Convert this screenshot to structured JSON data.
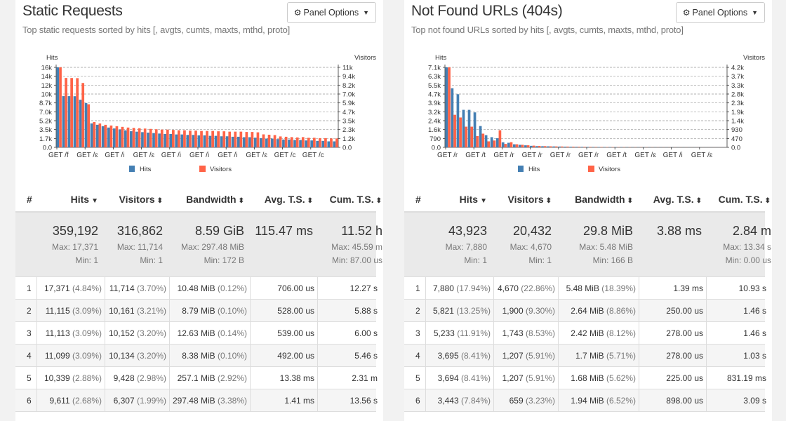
{
  "colors": {
    "hits": "#447fb3",
    "visitors": "#ff6347"
  },
  "panels": [
    {
      "title": "Static Requests",
      "subtitle": "Top static requests sorted by hits [, avgts, cumts, maxts, mthd, proto]",
      "options_label": "Panel Options",
      "chart_data": {
        "type": "bar",
        "y_left_label": "Hits",
        "y_right_label": "Visitors",
        "y_left_ticks": [
          "16k",
          "14k",
          "12k",
          "10k",
          "8.7k",
          "7.0k",
          "5.2k",
          "3.5k",
          "1.7k",
          "0.0"
        ],
        "y_right_ticks": [
          "11k",
          "9.4k",
          "8.2k",
          "7.0k",
          "5.9k",
          "4.7k",
          "3.5k",
          "2.3k",
          "1.2k",
          "0.0"
        ],
        "y_left_max": 17371,
        "y_right_max": 11714,
        "x_tick_labels": [
          "GET /f",
          "GET /ɛ",
          "GET /i",
          "GET /ɛ",
          "GET /i",
          "GET /i",
          "GET /i",
          "GET /ɛ",
          "GET /c",
          "GET /c"
        ],
        "legend": [
          "Hits",
          "Visitors"
        ],
        "series": [
          {
            "name": "Hits",
            "values": [
              17371,
              11115,
              11113,
              11099,
              10339,
              9611,
              5200,
              4900,
              4600,
              4300,
              4100,
              3900,
              3700,
              3500,
              3400,
              3300,
              3200,
              3100,
              3000,
              2900,
              2900,
              2800,
              2800,
              2700,
              2700,
              2600,
              2600,
              2500,
              2500,
              2400,
              2400,
              2300,
              2300,
              2200,
              2200,
              2100,
              2000,
              1900,
              1900,
              1800,
              1700,
              1700,
              1600,
              1600,
              1500,
              1500,
              1400,
              1400,
              1300,
              1300
            ]
          },
          {
            "name": "Visitors",
            "values": [
              11714,
              10161,
              10152,
              10134,
              9428,
              6307,
              3700,
              3500,
              3300,
              3200,
              3100,
              3000,
              2900,
              2850,
              2800,
              2750,
              2700,
              2650,
              2600,
              2600,
              2550,
              2500,
              2500,
              2450,
              2450,
              2400,
              2400,
              2400,
              2350,
              2350,
              2300,
              2300,
              2300,
              2250,
              2250,
              2200,
              1900,
              1850,
              1800,
              1600,
              1550,
              1500,
              1450,
              1500,
              1400,
              1400,
              1350,
              1350,
              1300,
              1300
            ]
          }
        ]
      },
      "table": {
        "headers": [
          "#",
          "Hits",
          "Visitors",
          "Bandwidth",
          "Avg. T.S.",
          "Cum. T.S."
        ],
        "summary": {
          "hits": "359,192",
          "hits_max": "Max: 17,371",
          "hits_min": "Min: 1",
          "visitors": "316,862",
          "visitors_max": "Max: 11,714",
          "visitors_min": "Min: 1",
          "bandwidth": "8.59 GiB",
          "bandwidth_max": "Max: 297.48 MiB",
          "bandwidth_min": "Min: 172 B",
          "avgts": "115.47 ms",
          "cumts": "11.52 h",
          "cumts_max": "Max: 45.59 m",
          "cumts_min": "Min: 87.00 us"
        },
        "rows": [
          {
            "n": "1",
            "hits": "17,371",
            "hits_pct": "(4.84%)",
            "vis": "11,714",
            "vis_pct": "(3.70%)",
            "bw": "10.48 MiB",
            "bw_pct": "(0.12%)",
            "avg": "706.00 us",
            "cum": "12.27 s"
          },
          {
            "n": "2",
            "hits": "11,115",
            "hits_pct": "(3.09%)",
            "vis": "10,161",
            "vis_pct": "(3.21%)",
            "bw": "8.79 MiB",
            "bw_pct": "(0.10%)",
            "avg": "528.00 us",
            "cum": "5.88 s"
          },
          {
            "n": "3",
            "hits": "11,113",
            "hits_pct": "(3.09%)",
            "vis": "10,152",
            "vis_pct": "(3.20%)",
            "bw": "12.63 MiB",
            "bw_pct": "(0.14%)",
            "avg": "539.00 us",
            "cum": "6.00 s"
          },
          {
            "n": "4",
            "hits": "11,099",
            "hits_pct": "(3.09%)",
            "vis": "10,134",
            "vis_pct": "(3.20%)",
            "bw": "8.38 MiB",
            "bw_pct": "(0.10%)",
            "avg": "492.00 us",
            "cum": "5.46 s"
          },
          {
            "n": "5",
            "hits": "10,339",
            "hits_pct": "(2.88%)",
            "vis": "9,428",
            "vis_pct": "(2.98%)",
            "bw": "257.1 MiB",
            "bw_pct": "(2.92%)",
            "avg": "13.38 ms",
            "cum": "2.31 m"
          },
          {
            "n": "6",
            "hits": "9,611",
            "hits_pct": "(2.68%)",
            "vis": "6,307",
            "vis_pct": "(1.99%)",
            "bw": "297.48 MiB",
            "bw_pct": "(3.38%)",
            "avg": "1.41 ms",
            "cum": "13.56 s"
          }
        ]
      }
    },
    {
      "title": "Not Found URLs (404s)",
      "subtitle": "Top not found URLs sorted by hits [, avgts, cumts, maxts, mthd, proto]",
      "options_label": "Panel Options",
      "chart_data": {
        "type": "bar",
        "y_left_label": "Hits",
        "y_right_label": "Visitors",
        "y_left_ticks": [
          "7.1k",
          "6.3k",
          "5.5k",
          "4.7k",
          "3.9k",
          "3.2k",
          "2.4k",
          "1.6k",
          "790",
          "0.0"
        ],
        "y_right_ticks": [
          "4.2k",
          "3.7k",
          "3.3k",
          "2.8k",
          "2.3k",
          "1.9k",
          "1.4k",
          "930",
          "470",
          "0.0"
        ],
        "y_left_max": 7880,
        "y_right_max": 4670,
        "x_tick_labels": [
          "GET /r",
          "GET /t",
          "GET /r",
          "GET /r",
          "GET /r",
          "GET /r",
          "GET /t",
          "GET /ɛ",
          "GET /i",
          "GET /ɛ"
        ],
        "legend": [
          "Hits",
          "Visitors"
        ],
        "series": [
          {
            "name": "Hits",
            "values": [
              7880,
              5821,
              5233,
              3695,
              3694,
              3443,
              2100,
              1200,
              1000,
              900,
              500,
              450,
              300,
              250,
              200,
              150,
              120,
              110,
              100,
              90,
              80,
              70,
              60,
              55,
              50,
              45,
              40,
              35,
              30,
              28,
              25,
              22,
              20,
              18,
              16,
              14,
              12,
              11,
              10,
              9,
              8,
              7,
              6,
              5,
              5,
              4,
              4,
              3,
              3,
              2
            ]
          },
          {
            "name": "Visitors",
            "values": [
              4670,
              1900,
              1743,
              1207,
              1207,
              659,
              800,
              350,
              400,
              1000,
              200,
              300,
              180,
              150,
              120,
              100,
              80,
              70,
              60,
              55,
              50,
              45,
              40,
              35,
              30,
              28,
              25,
              22,
              20,
              18,
              16,
              14,
              12,
              11,
              10,
              9,
              8,
              7,
              6,
              5,
              5,
              4,
              4,
              3,
              3,
              3,
              2,
              2,
              2,
              1
            ]
          }
        ]
      },
      "table": {
        "headers": [
          "#",
          "Hits",
          "Visitors",
          "Bandwidth",
          "Avg. T.S.",
          "Cum. T.S."
        ],
        "summary": {
          "hits": "43,923",
          "hits_max": "Max: 7,880",
          "hits_min": "Min: 1",
          "visitors": "20,432",
          "visitors_max": "Max: 4,670",
          "visitors_min": "Min: 1",
          "bandwidth": "29.8 MiB",
          "bandwidth_max": "Max: 5.48 MiB",
          "bandwidth_min": "Min: 166 B",
          "avgts": "3.88 ms",
          "cumts": "2.84 m",
          "cumts_max": "Max: 13.34 s",
          "cumts_min": "Min: 0.00 us"
        },
        "rows": [
          {
            "n": "1",
            "hits": "7,880",
            "hits_pct": "(17.94%)",
            "vis": "4,670",
            "vis_pct": "(22.86%)",
            "bw": "5.48 MiB",
            "bw_pct": "(18.39%)",
            "avg": "1.39 ms",
            "cum": "10.93 s"
          },
          {
            "n": "2",
            "hits": "5,821",
            "hits_pct": "(13.25%)",
            "vis": "1,900",
            "vis_pct": "(9.30%)",
            "bw": "2.64 MiB",
            "bw_pct": "(8.86%)",
            "avg": "250.00 us",
            "cum": "1.46 s"
          },
          {
            "n": "3",
            "hits": "5,233",
            "hits_pct": "(11.91%)",
            "vis": "1,743",
            "vis_pct": "(8.53%)",
            "bw": "2.42 MiB",
            "bw_pct": "(8.12%)",
            "avg": "278.00 us",
            "cum": "1.46 s"
          },
          {
            "n": "4",
            "hits": "3,695",
            "hits_pct": "(8.41%)",
            "vis": "1,207",
            "vis_pct": "(5.91%)",
            "bw": "1.7 MiB",
            "bw_pct": "(5.71%)",
            "avg": "278.00 us",
            "cum": "1.03 s"
          },
          {
            "n": "5",
            "hits": "3,694",
            "hits_pct": "(8.41%)",
            "vis": "1,207",
            "vis_pct": "(5.91%)",
            "bw": "1.68 MiB",
            "bw_pct": "(5.62%)",
            "avg": "225.00 us",
            "cum": "831.19 ms"
          },
          {
            "n": "6",
            "hits": "3,443",
            "hits_pct": "(7.84%)",
            "vis": "659",
            "vis_pct": "(3.23%)",
            "bw": "1.94 MiB",
            "bw_pct": "(6.52%)",
            "avg": "898.00 us",
            "cum": "3.09 s"
          }
        ]
      }
    }
  ]
}
